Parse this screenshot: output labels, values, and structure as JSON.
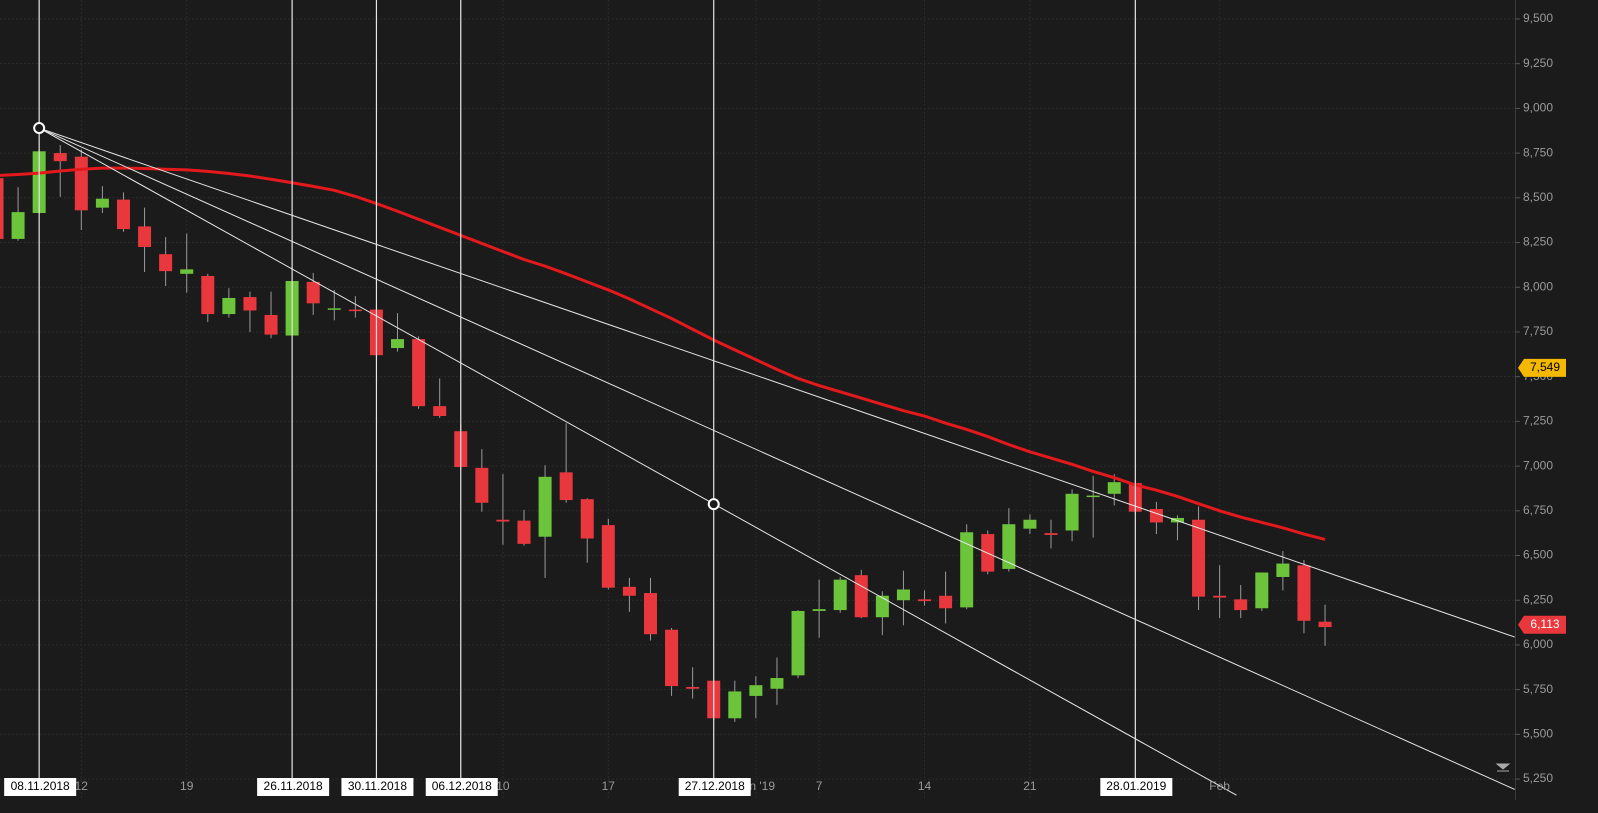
{
  "chart_data": {
    "type": "candlestick",
    "categories": [
      null,
      null,
      "08.11.2018",
      null,
      "12",
      null,
      null,
      null,
      null,
      "19",
      null,
      null,
      null,
      null,
      "26.11.2018",
      null,
      null,
      null,
      "30.11.2018",
      null,
      null,
      null,
      "06.12.2018",
      null,
      "10",
      null,
      null,
      null,
      null,
      "17",
      null,
      null,
      null,
      null,
      "27.12.2018",
      null,
      "Jan '19",
      null,
      null,
      "7",
      null,
      null,
      null,
      null,
      "14",
      null,
      null,
      null,
      null,
      "21",
      null,
      null,
      null,
      null,
      "28.01.2019",
      null,
      null,
      null,
      "Feb",
      null,
      null,
      null,
      null,
      null
    ],
    "crosshair_dates": [
      "08.11.2018",
      "26.11.2018",
      "30.11.2018",
      "06.12.2018",
      "27.12.2018",
      "28.01.2019"
    ],
    "open": [
      8610,
      8270,
      8415,
      8750,
      8730,
      8445,
      8490,
      8340,
      8185,
      8075,
      8063,
      7850,
      7945,
      7845,
      7730,
      8030,
      7880,
      7875,
      7875,
      7660,
      7710,
      7335,
      7195,
      6990,
      6700,
      6695,
      6605,
      6965,
      6815,
      6670,
      6325,
      6290,
      6085,
      5765,
      5800,
      5590,
      5715,
      5755,
      5830,
      6190,
      6195,
      6390,
      6155,
      6250,
      6255,
      6275,
      6210,
      6620,
      6425,
      6650,
      6625,
      6640,
      6830,
      6845,
      6905,
      6760,
      6685,
      6700,
      6275,
      6255,
      6205,
      6380,
      6445,
      6130
    ],
    "high": [
      8620,
      8560,
      8770,
      8795,
      8770,
      8565,
      8530,
      8445,
      8280,
      8300,
      8075,
      7995,
      7975,
      7975,
      8035,
      8080,
      7985,
      7950,
      7905,
      7855,
      7725,
      7490,
      7235,
      7095,
      6955,
      6755,
      7005,
      7240,
      6820,
      6705,
      6375,
      6375,
      6095,
      5875,
      5800,
      5800,
      5825,
      5930,
      6195,
      6365,
      6380,
      6420,
      6300,
      6415,
      6305,
      6410,
      6675,
      6640,
      6765,
      6730,
      6700,
      6870,
      6945,
      6955,
      6925,
      6800,
      6725,
      6775,
      6445,
      6335,
      6405,
      6525,
      6475,
      6225
    ],
    "low": [
      8270,
      8260,
      8410,
      8505,
      8320,
      8415,
      8310,
      8085,
      8007,
      7970,
      7805,
      7830,
      7750,
      7715,
      7730,
      7845,
      7815,
      7830,
      7605,
      7640,
      7320,
      7270,
      6980,
      6745,
      6560,
      6555,
      6375,
      6795,
      6460,
      6310,
      6185,
      6025,
      5715,
      5700,
      5580,
      5570,
      5590,
      5665,
      5815,
      6040,
      6180,
      6150,
      6055,
      6110,
      6220,
      6120,
      6200,
      6395,
      6410,
      6620,
      6540,
      6580,
      6600,
      6780,
      6735,
      6620,
      6585,
      6195,
      6150,
      6150,
      6190,
      6305,
      6065,
      5995
    ],
    "close": [
      8270,
      8420,
      8760,
      8705,
      8430,
      8495,
      8325,
      8225,
      8090,
      8100,
      7850,
      7940,
      7870,
      7735,
      8035,
      7910,
      7882,
      7870,
      7620,
      7710,
      7335,
      7280,
      6995,
      6795,
      6690,
      6565,
      6940,
      6810,
      6595,
      6320,
      6275,
      6060,
      5770,
      5755,
      5590,
      5740,
      5775,
      5815,
      6190,
      6200,
      6365,
      6155,
      6275,
      6310,
      6245,
      6205,
      6630,
      6410,
      6675,
      6700,
      6615,
      6845,
      6835,
      6910,
      6745,
      6685,
      6710,
      6270,
      6265,
      6195,
      6405,
      6455,
      6135,
      6100
    ],
    "up_color": "#6cc43a",
    "down_color": "#e8383d",
    "moving_average": {
      "color": "#e3191c",
      "values": [
        8625,
        8630,
        8638,
        8650,
        8660,
        8666,
        8666,
        8664,
        8660,
        8656,
        8648,
        8636,
        8622,
        8604,
        8584,
        8564,
        8542,
        8508,
        8468,
        8425,
        8380,
        8335,
        8290,
        8245,
        8200,
        8155,
        8118,
        8075,
        8030,
        7985,
        7935,
        7880,
        7825,
        7765,
        7705,
        7650,
        7595,
        7540,
        7490,
        7450,
        7415,
        7380,
        7345,
        7310,
        7280,
        7240,
        7205,
        7165,
        7120,
        7080,
        7045,
        7010,
        6970,
        6935,
        6895,
        6865,
        6830,
        6790,
        6750,
        6715,
        6685,
        6655,
        6620,
        6590
      ]
    },
    "trend_lines": [
      {
        "points": [
          [
            2,
            8890
          ],
          [
            72,
            6044
          ]
        ],
        "color": "#e6e6e6"
      },
      {
        "points": [
          [
            2,
            8890
          ],
          [
            72,
            5192
          ]
        ],
        "color": "#e6e6e6"
      },
      {
        "points": [
          [
            2,
            8890
          ],
          [
            58.8,
            5160
          ]
        ],
        "color": "#e6e6e6"
      }
    ],
    "handles": [
      [
        2,
        8890
      ],
      [
        34,
        6787
      ]
    ],
    "price_tags": [
      {
        "value": 7549,
        "label": "7,549",
        "color": "#f5b800",
        "text_color": "#000000"
      },
      {
        "value": 6113,
        "label": "6,113",
        "color": "#e8383d",
        "text_color": "#ffffff"
      }
    ],
    "ylim": [
      5133,
      9606
    ],
    "yticks": [
      {
        "value": 5250,
        "label": "5,250"
      },
      {
        "value": 5500,
        "label": "5,500"
      },
      {
        "value": 5750,
        "label": "5,750"
      },
      {
        "value": 6000,
        "label": "6,000"
      },
      {
        "value": 6250,
        "label": "6,250"
      },
      {
        "value": 6500,
        "label": "6,500"
      },
      {
        "value": 6750,
        "label": "6,750"
      },
      {
        "value": 7000,
        "label": "7,000"
      },
      {
        "value": 7250,
        "label": "7,250"
      },
      {
        "value": 7500,
        "label": "7,500"
      },
      {
        "value": 7750,
        "label": "7,750"
      },
      {
        "value": 8000,
        "label": "8,000"
      },
      {
        "value": 8250,
        "label": "8,250"
      },
      {
        "value": 8500,
        "label": "8,500"
      },
      {
        "value": 8750,
        "label": "8,750"
      },
      {
        "value": 9000,
        "label": "9,000"
      },
      {
        "value": 9250,
        "label": "9,250"
      },
      {
        "value": 9500,
        "label": "9,500"
      }
    ],
    "grid": true
  }
}
